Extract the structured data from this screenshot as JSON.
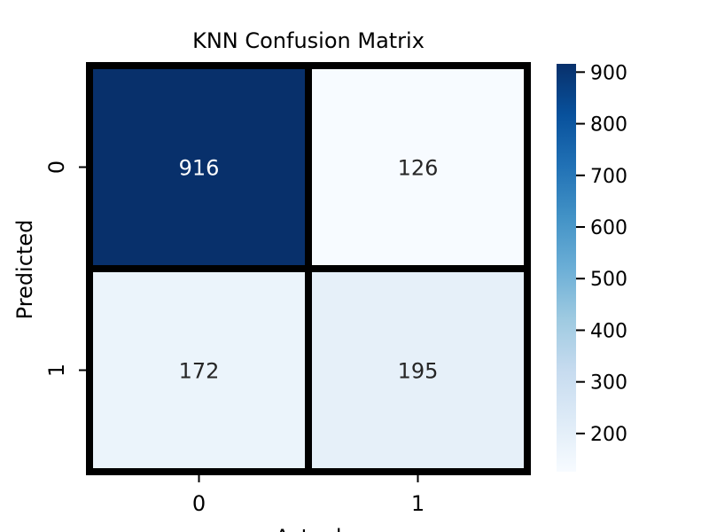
{
  "chart_data": {
    "type": "heatmap",
    "title": "KNN Confusion Matrix",
    "xlabel": "Actual",
    "ylabel": "Predicted",
    "x_categories": [
      "0",
      "1"
    ],
    "y_categories": [
      "0",
      "1"
    ],
    "matrix": [
      [
        916,
        126
      ],
      [
        172,
        195
      ]
    ],
    "colormap": "Blues",
    "colorbar": {
      "ticks": [
        200,
        300,
        400,
        500,
        600,
        700,
        800,
        900
      ],
      "tick_labels": [
        "200",
        "300",
        "400",
        "500",
        "600",
        "700",
        "800",
        "900"
      ],
      "range": [
        126,
        916
      ]
    }
  }
}
